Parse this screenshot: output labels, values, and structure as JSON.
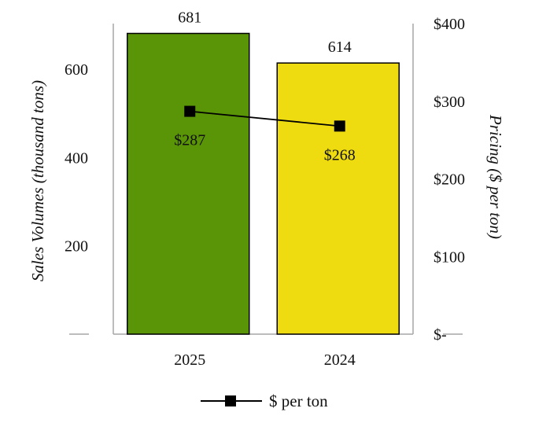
{
  "chart_data": {
    "type": "bar",
    "categories": [
      "2025",
      "2024"
    ],
    "series": [
      {
        "axis": "left",
        "values": [
          681,
          614
        ],
        "colors": [
          "#5a9407",
          "#eedc11"
        ],
        "value_labels": [
          "681",
          "614"
        ]
      },
      {
        "name": "$ per ton",
        "type": "line",
        "axis": "right",
        "values": [
          287,
          268
        ],
        "color": "#000000",
        "marker": "square",
        "value_labels": [
          "$287",
          "$268"
        ]
      }
    ],
    "ylabel": "Sales Volumes (thousand tons)",
    "y2label": "Pricing ($ per ton)",
    "ylim": [
      0,
      700
    ],
    "y2lim": [
      0,
      400
    ],
    "yticks": [
      200,
      400,
      600
    ],
    "yticklabels": [
      "200",
      "400",
      "600"
    ],
    "y2ticks": [
      0,
      100,
      200,
      300,
      400
    ],
    "y2ticklabels": [
      "$-",
      "$100",
      "$200",
      "$300",
      "$400"
    ],
    "grid": false,
    "legend_position": "bottom"
  }
}
